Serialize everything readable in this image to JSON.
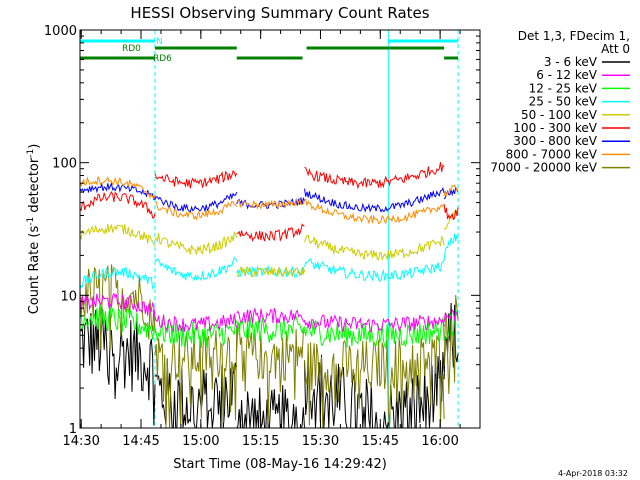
{
  "chart_data": {
    "type": "line",
    "title": "HESSI Observing Summary Count Rates",
    "xlabel": "Start Time (08-May-16 14:29:42)",
    "ylabel": "Count Rate (s⁻¹ detector⁻¹)",
    "ylabel_main": "Count Rate (s",
    "ylabel_sup1": "-1",
    "ylabel_mid": " detector",
    "ylabel_sup2": "-1",
    "ylabel_end": ")",
    "yscale": "log",
    "ylim": [
      1,
      1000
    ],
    "xlim": [
      "14:29:42",
      "16:10:00"
    ],
    "x_ticks": [
      "14:30",
      "14:45",
      "15:00",
      "15:15",
      "15:30",
      "15:45",
      "16:00"
    ],
    "y_ticks": [
      "1",
      "10",
      "100",
      "1000"
    ],
    "grid": false,
    "legend_position": "right",
    "legend_header": [
      "Det 1,3, FDecim 1,",
      "Att 0"
    ],
    "timestamp": "4-Apr-2018 03:32",
    "state_bars": [
      {
        "label": "N",
        "color": "#00ffff",
        "segments": [
          [
            "14:29:42",
            "14:48:30"
          ],
          [
            "15:47:00",
            "16:04:30"
          ]
        ]
      },
      {
        "label": "RD0",
        "color": "#008000",
        "segments": [
          [
            "14:48:30",
            "15:09:00"
          ],
          [
            "15:26:30",
            "16:01:00"
          ]
        ]
      },
      {
        "label": "RD6",
        "color": "#008000",
        "segments": [
          [
            "14:29:42",
            "14:48:30"
          ],
          [
            "15:09:00",
            "15:25:30"
          ],
          [
            "16:01:00",
            "16:04:30"
          ]
        ]
      }
    ],
    "vlines_solid": [
      "14:29:42",
      "15:47:00"
    ],
    "vlines_dashed": [
      "14:48:30",
      "16:04:30"
    ],
    "segments": [
      [
        "14:29:42",
        "14:48:30"
      ],
      [
        "14:48:30",
        "15:09:00"
      ],
      [
        "15:09:00",
        "15:26:00"
      ],
      [
        "15:26:00",
        "16:01:00"
      ],
      [
        "16:01:00",
        "16:04:30"
      ]
    ],
    "series": [
      {
        "name": "3 - 6 keV",
        "color": "#000000",
        "levels": [
          [
            4.5,
            4.0,
            3.0
          ],
          [
            2.0,
            1.5,
            2.0
          ],
          [
            1.5,
            1.0,
            1.5
          ],
          [
            2.5,
            1.2,
            2.0
          ],
          [
            3.5,
            4.5,
            5.0
          ]
        ],
        "noise": 0.3
      },
      {
        "name": "6 - 12 keV",
        "color": "#ff00ff",
        "levels": [
          [
            8.5,
            9.0,
            7.5
          ],
          [
            6.5,
            6.0,
            6.5
          ],
          [
            7.0,
            7.0,
            7.0
          ],
          [
            6.5,
            6.0,
            6.5
          ],
          [
            7.0,
            7.0,
            7.5
          ]
        ],
        "noise": 0.06
      },
      {
        "name": "12 - 25 keV",
        "color": "#00ff00",
        "levels": [
          [
            7.0,
            6.5,
            5.5
          ],
          [
            5.5,
            5.0,
            5.5
          ],
          [
            5.5,
            5.5,
            5.5
          ],
          [
            5.5,
            5.0,
            5.5
          ],
          [
            5.5,
            6.0,
            6.5
          ]
        ],
        "noise": 0.1
      },
      {
        "name": "25 - 50 keV",
        "color": "#00ffff",
        "levels": [
          [
            12.0,
            15.0,
            12.0
          ],
          [
            18.0,
            14.0,
            18.0
          ],
          [
            15.0,
            15.0,
            15.0
          ],
          [
            18.0,
            14.0,
            17.0
          ],
          [
            20.0,
            25.0,
            28.0
          ]
        ],
        "noise": 0.04
      },
      {
        "name": "50 - 100 keV",
        "color": "#cccc00",
        "levels": [
          [
            28.0,
            32.0,
            24.0
          ],
          [
            28.0,
            22.0,
            28.0
          ],
          [
            15.0,
            15.0,
            15.0
          ],
          [
            27.0,
            20.0,
            26.0
          ],
          [
            30.0,
            38.0,
            42.0
          ]
        ],
        "noise": 0.04
      },
      {
        "name": "100 - 300 keV",
        "color": "#ff0000",
        "levels": [
          [
            45.0,
            55.0,
            40.0
          ],
          [
            80.0,
            70.0,
            85.0
          ],
          [
            30.0,
            28.0,
            32.0
          ],
          [
            85.0,
            70.0,
            95.0
          ],
          [
            45.0,
            40.0,
            45.0
          ]
        ],
        "noise": 0.04
      },
      {
        "name": "300 - 800 keV",
        "color": "#0000ff",
        "levels": [
          [
            62.0,
            65.0,
            55.0
          ],
          [
            55.0,
            45.0,
            58.0
          ],
          [
            50.0,
            48.0,
            52.0
          ],
          [
            60.0,
            45.0,
            62.0
          ],
          [
            55.0,
            60.0,
            62.0
          ]
        ],
        "noise": 0.03
      },
      {
        "name": "800 - 7000 keV",
        "color": "#ff8c00",
        "levels": [
          [
            70.0,
            72.0,
            55.0
          ],
          [
            48.0,
            40.0,
            50.0
          ],
          [
            50.0,
            48.0,
            52.0
          ],
          [
            50.0,
            37.0,
            48.0
          ],
          [
            58.0,
            62.0,
            65.0
          ]
        ],
        "noise": 0.03
      },
      {
        "name": "7000 - 20000 keV",
        "color": "#808000",
        "levels": [
          [
            10.0,
            11.0,
            8.0
          ],
          [
            3.5,
            3.5,
            4.0
          ],
          [
            4.0,
            3.5,
            4.0
          ],
          [
            3.0,
            3.0,
            3.5
          ],
          [
            4.5,
            6.0,
            7.0
          ]
        ],
        "noise": 0.2
      }
    ]
  }
}
